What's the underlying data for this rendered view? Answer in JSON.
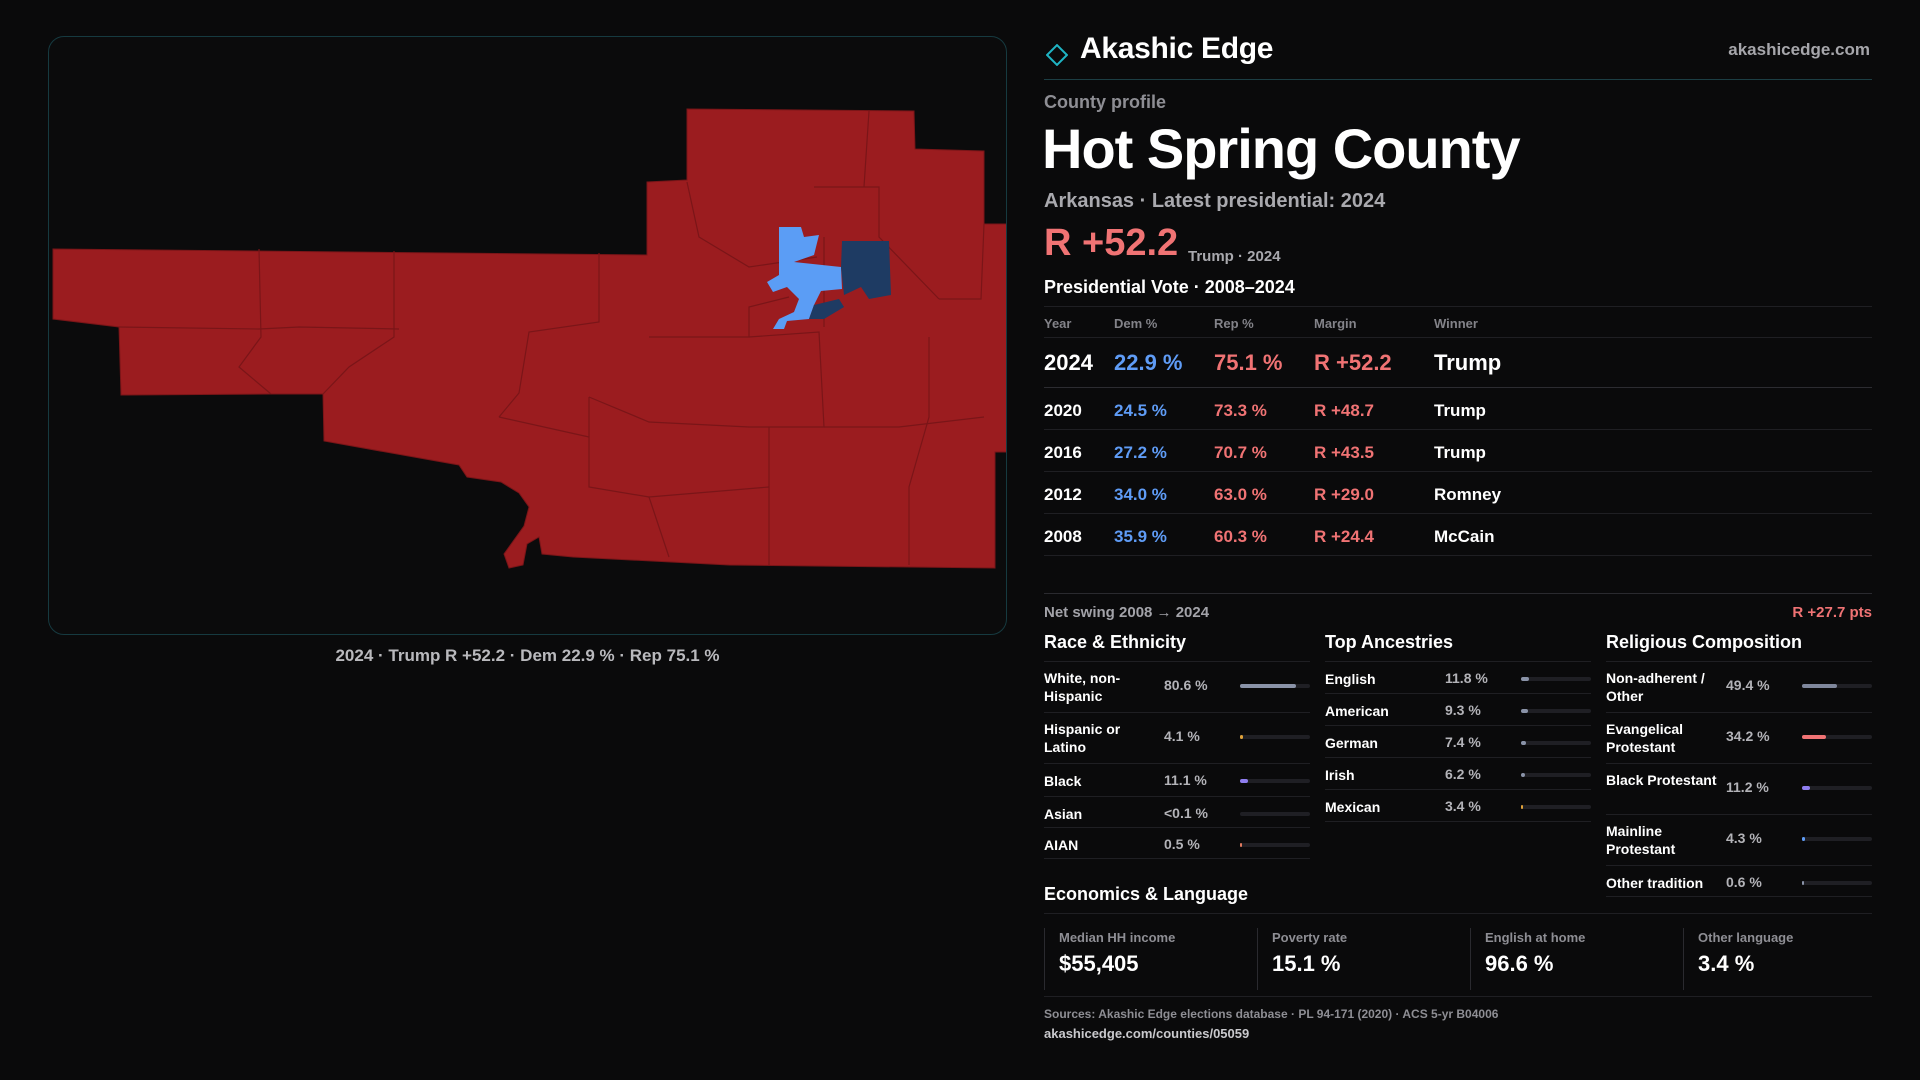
{
  "brand": {
    "name": "Akashic Edge",
    "url": "akashicedge.com",
    "accent": "#1fb4c4"
  },
  "profile": {
    "eyebrow": "County profile",
    "title": "Hot Spring County",
    "subline": "Arkansas · Latest presidential: 2024",
    "margin": "R +52.2",
    "margin_note": "Trump · 2024"
  },
  "map": {
    "caption": "2024 · Trump R +52.2 · Dem 22.9 % · Rep 75.1 %",
    "colors": {
      "rep": "#9b1c1f",
      "dem_light": "#5b9df5",
      "dem_dark": "#1e3b63",
      "border": "#7a1518"
    }
  },
  "presidential": {
    "title": "Presidential Vote · 2008–2024",
    "headers": {
      "year": "Year",
      "dem": "Dem %",
      "rep": "Rep %",
      "margin": "Margin",
      "winner": "Winner"
    },
    "rows": [
      {
        "year": "2024",
        "dem": "22.9 %",
        "rep": "75.1 %",
        "margin": "R +52.2",
        "winner": "Trump"
      },
      {
        "year": "2020",
        "dem": "24.5 %",
        "rep": "73.3 %",
        "margin": "R +48.7",
        "winner": "Trump"
      },
      {
        "year": "2016",
        "dem": "27.2 %",
        "rep": "70.7 %",
        "margin": "R +43.5",
        "winner": "Trump"
      },
      {
        "year": "2012",
        "dem": "34.0 %",
        "rep": "63.0 %",
        "margin": "R +29.0",
        "winner": "Romney"
      },
      {
        "year": "2008",
        "dem": "35.9 %",
        "rep": "60.3 %",
        "margin": "R +24.4",
        "winner": "McCain"
      }
    ],
    "swing_label": "Net swing 2008 → 2024",
    "swing_value": "R +27.7 pts"
  },
  "race": {
    "title": "Race & Ethnicity",
    "rows": [
      {
        "label": "White, non-Hispanic",
        "value": "80.6 %",
        "share": 0.806,
        "color": "#8a93a8"
      },
      {
        "label": "Hispanic or Latino",
        "value": "4.1 %",
        "share": 0.041,
        "color": "#e0a23a"
      },
      {
        "label": "Black",
        "value": "11.1 %",
        "share": 0.111,
        "color": "#8f7ef0"
      },
      {
        "label": "Asian",
        "value": "<0.1 %",
        "share": 0.001,
        "color": "#3fb6a8"
      },
      {
        "label": "AIAN",
        "value": "0.5 %",
        "share": 0.005,
        "color": "#e07a5f"
      }
    ]
  },
  "ancestry": {
    "title": "Top Ancestries",
    "rows": [
      {
        "label": "English",
        "value": "11.8 %",
        "share": 0.118,
        "color": "#8a93a8"
      },
      {
        "label": "American",
        "value": "9.3 %",
        "share": 0.093,
        "color": "#8a93a8"
      },
      {
        "label": "German",
        "value": "7.4 %",
        "share": 0.074,
        "color": "#8a93a8"
      },
      {
        "label": "Irish",
        "value": "6.2 %",
        "share": 0.062,
        "color": "#8a93a8"
      },
      {
        "label": "Mexican",
        "value": "3.4 %",
        "share": 0.034,
        "color": "#e0a23a"
      }
    ]
  },
  "religion": {
    "title": "Religious Composition",
    "rows": [
      {
        "label": "Non-adherent / Other",
        "value": "49.4 %",
        "share": 0.494,
        "color": "#7f879c"
      },
      {
        "label": "Evangelical Protestant",
        "value": "34.2 %",
        "share": 0.342,
        "color": "#f07374"
      },
      {
        "label": "Black Protestant",
        "value": "11.2 %",
        "share": 0.112,
        "color": "#8f7ef0"
      },
      {
        "label": "Mainline Protestant",
        "value": "4.3 %",
        "share": 0.043,
        "color": "#5f9cf6"
      },
      {
        "label": "Other tradition",
        "value": "0.6 %",
        "share": 0.006,
        "color": "#8a93a8"
      }
    ]
  },
  "economics": {
    "title": "Economics & Language",
    "cards": [
      {
        "label": "Median HH income",
        "value": "$55,405"
      },
      {
        "label": "Poverty rate",
        "value": "15.1 %"
      },
      {
        "label": "English at home",
        "value": "96.6 %"
      },
      {
        "label": "Other language",
        "value": "3.4 %"
      }
    ]
  },
  "footer": {
    "sources": "Sources: Akashic Edge elections database · PL 94-171 (2020) · ACS 5-yr B04006",
    "link": "akashicedge.com/counties/05059"
  }
}
